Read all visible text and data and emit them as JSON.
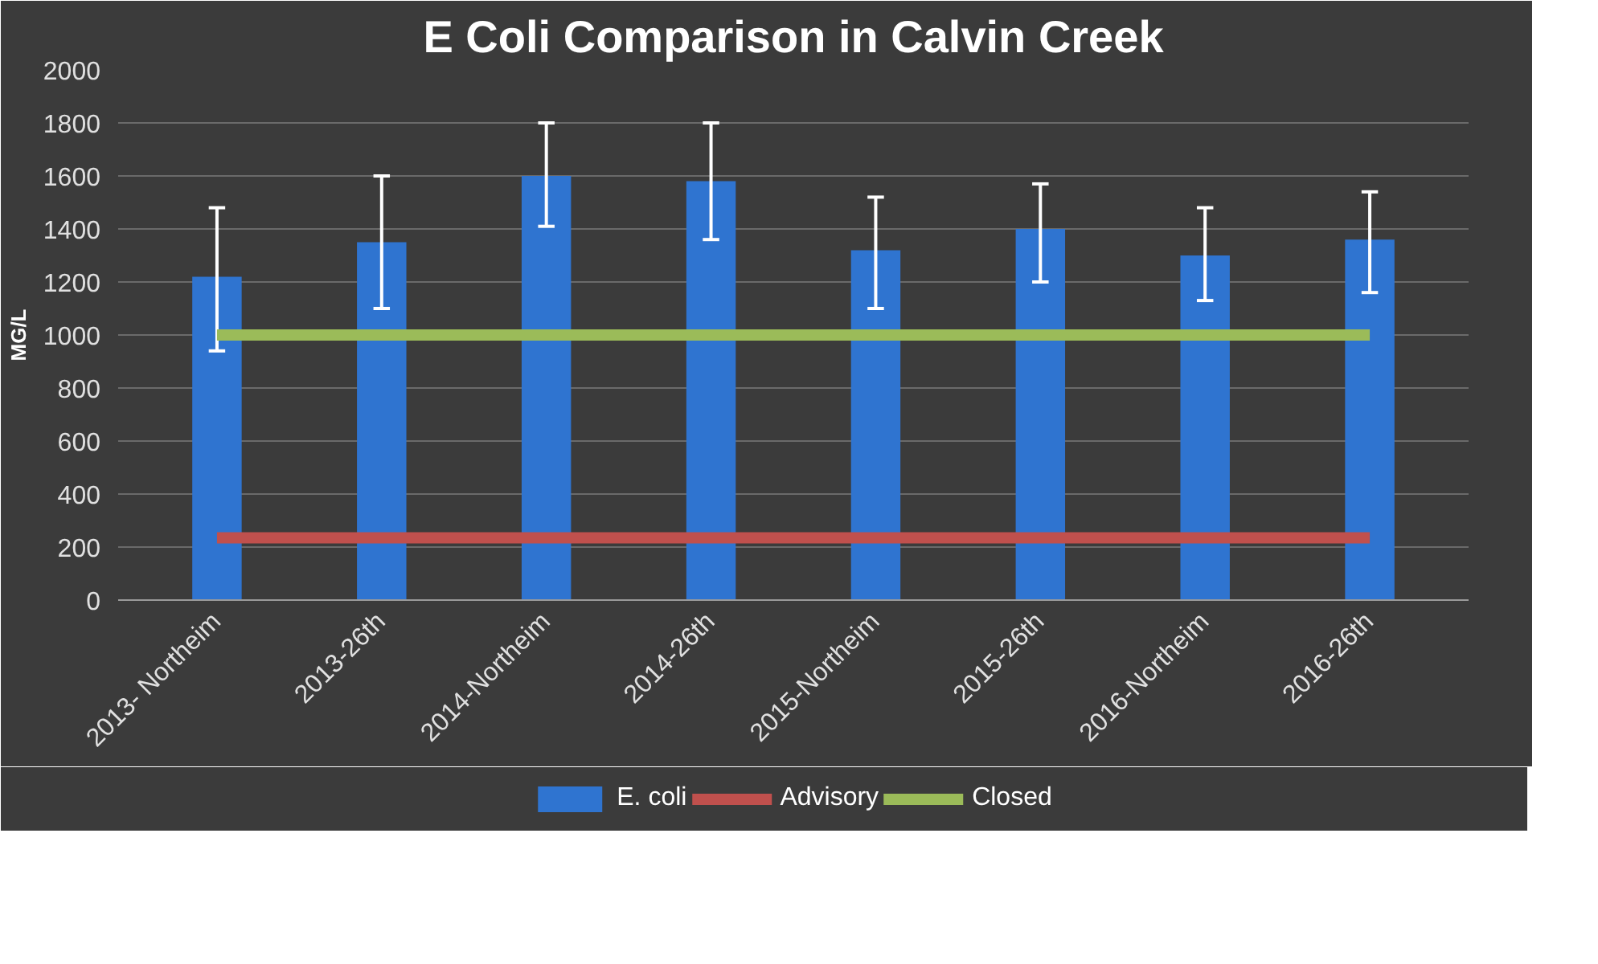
{
  "chart_data": {
    "type": "bar",
    "title": "E Coli Comparison in Calvin Creek",
    "ylabel": "MG/L",
    "categories": [
      "2013- Northeim",
      "2013-26th",
      "2014-Northeim",
      "2014-26th",
      "2015-Northeim",
      "2015-26th",
      "2016-Northeim",
      "2016-26th"
    ],
    "series": [
      {
        "name": "E. coli",
        "color": "#2f74d0",
        "values": [
          1220,
          1350,
          1600,
          1580,
          1320,
          1400,
          1300,
          1360
        ],
        "errors": [
          [
            940,
            1480
          ],
          [
            1100,
            1600
          ],
          [
            1410,
            1800
          ],
          [
            1360,
            1800
          ],
          [
            1100,
            1520
          ],
          [
            1200,
            1570
          ],
          [
            1130,
            1480
          ],
          [
            1160,
            1540
          ]
        ]
      },
      {
        "name": "Advisory",
        "type": "line",
        "color": "#c0504d",
        "values": [
          235,
          235,
          235,
          235,
          235,
          235,
          235,
          235
        ]
      },
      {
        "name": "Closed",
        "type": "line",
        "color": "#9bbb59",
        "values": [
          1000,
          1000,
          1000,
          1000,
          1000,
          1000,
          1000,
          1000
        ]
      }
    ],
    "ylim": [
      0,
      2000
    ],
    "yticks": [
      0,
      200,
      400,
      600,
      800,
      1000,
      1200,
      1400,
      1600,
      1800,
      2000
    ],
    "grid": "y",
    "legend": "bottom"
  }
}
